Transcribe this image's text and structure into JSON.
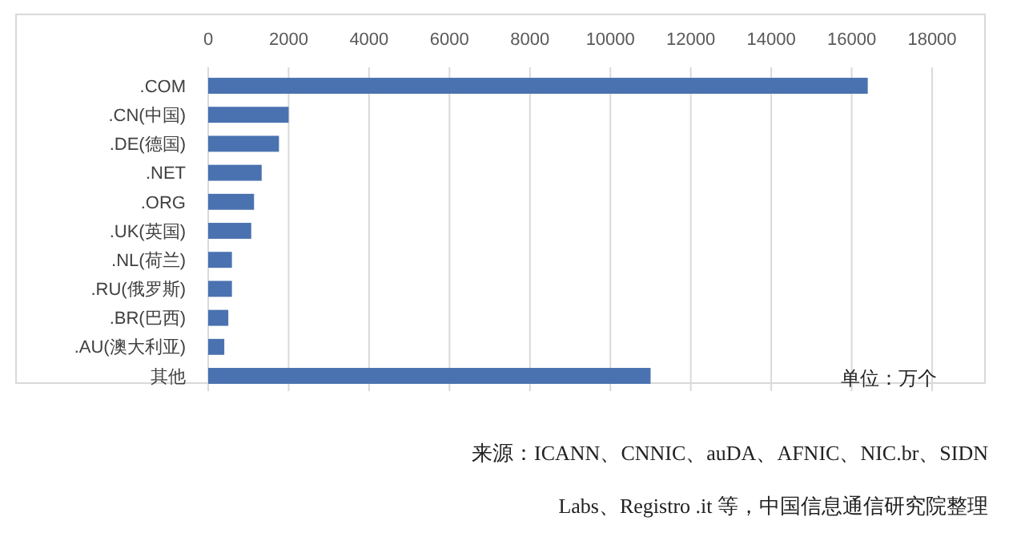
{
  "chart_data": {
    "type": "bar",
    "orientation": "horizontal",
    "categories": [
      ".COM",
      ".CN(中国)",
      ".DE(德国)",
      ".NET",
      ".ORG",
      ".UK(英国)",
      ".NL(荷兰)",
      ".RU(俄罗斯)",
      ".BR(巴西)",
      ".AU(澳大利亚)",
      "其他"
    ],
    "values": [
      16400,
      2000,
      1760,
      1330,
      1140,
      1070,
      590,
      590,
      500,
      400,
      11000
    ],
    "color": "#4a72b0",
    "xlim": [
      0,
      18000
    ],
    "xticks": [
      0,
      2000,
      4000,
      6000,
      8000,
      10000,
      12000,
      14000,
      16000,
      18000
    ],
    "grid": "x",
    "annotations": [
      "单位：万个",
      "来源：ICANN、CNNIC、auDA、AFNIC、NIC.br、SIDN Labs、Registro .it 等，中国信息通信研究院整理"
    ]
  }
}
